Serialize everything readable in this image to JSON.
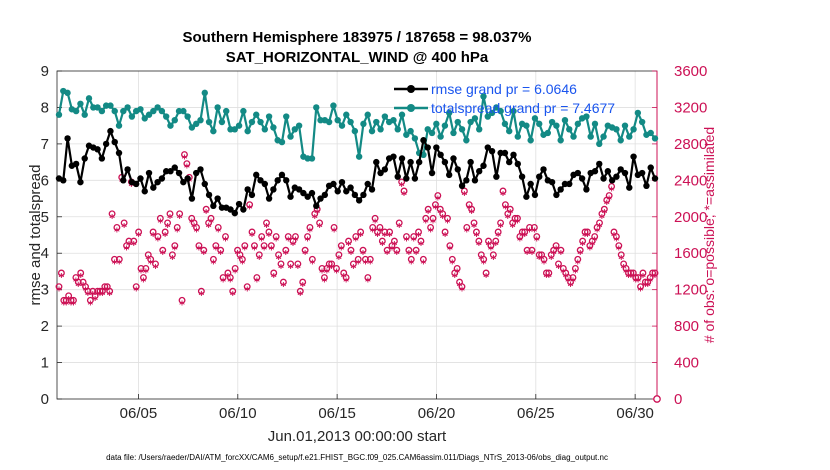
{
  "chart_data": {
    "type": "line",
    "title": "Southern Hemisphere 183975 / 187658 = 98.037%",
    "subtitle": "SAT_HORIZONTAL_WIND @ 400 hPa",
    "xlabel": "Jun.01,2013 00:00:00 start",
    "ylabel": "rmse and totalspread",
    "y2label": "# of obs: o=possible; *=assimilated",
    "footer": "data file: /Users/raeder/DAI/ATM_forcXX/CAM6_setup/f.e21.FHIST_BGC.f09_025.CAM6assim.011/Diags_NTrS_2013-06/obs_diag_output.nc",
    "xlim": [
      0.9,
      31.1
    ],
    "ylim": [
      0,
      9
    ],
    "y2lim": [
      0,
      3600
    ],
    "xtick_values": [
      5,
      10,
      15,
      20,
      25,
      30
    ],
    "xtick_labels": [
      "06/05",
      "06/10",
      "06/15",
      "06/20",
      "06/25",
      "06/30"
    ],
    "ytick_labels": [
      "0",
      "1",
      "2",
      "3",
      "4",
      "5",
      "6",
      "7",
      "8",
      "9"
    ],
    "y2tick_labels": [
      "0",
      "400",
      "800",
      "1200",
      "1600",
      "2000",
      "2400",
      "2800",
      "3200",
      "3600"
    ],
    "legend_position": "top-right",
    "colors": {
      "rmse": "#000000",
      "spread": "#138a85",
      "obs": "#cc1155",
      "legend_text": "#1a55ee"
    },
    "series": [
      {
        "name": "rmse grand pr = 6.0646",
        "values": [
          6.05,
          6.0,
          7.15,
          6.4,
          6.45,
          5.95,
          6.6,
          6.95,
          6.9,
          6.85,
          6.6,
          7.0,
          7.35,
          7.05,
          6.75,
          6.0,
          6.3,
          5.95,
          5.9,
          6.05,
          5.7,
          6.2,
          5.8,
          5.95,
          6.05,
          6.25,
          6.25,
          6.35,
          6.2,
          5.95,
          6.05,
          5.5,
          6.2,
          6.3,
          5.9,
          5.6,
          5.3,
          5.5,
          5.25,
          5.25,
          5.2,
          5.1,
          5.35,
          5.2,
          5.75,
          5.6,
          6.15,
          6.0,
          5.9,
          5.5,
          5.75,
          6.0,
          6.15,
          6.0,
          5.55,
          5.8,
          5.75,
          5.65,
          5.55,
          5.65,
          5.3,
          5.5,
          5.6,
          5.85,
          5.9,
          5.7,
          5.95,
          5.7,
          5.8,
          5.6,
          5.45,
          5.6,
          5.9,
          5.75,
          6.5,
          6.2,
          6.3,
          6.6,
          6.65,
          6.1,
          6.6,
          6.05,
          6.5,
          6.05,
          6.5,
          7.1,
          6.9,
          6.2,
          6.9,
          6.7,
          6.5,
          6.15,
          6.6,
          6.3,
          5.85,
          6.0,
          6.5,
          6.0,
          6.25,
          6.4,
          6.9,
          6.8,
          6.1,
          6.75,
          6.75,
          6.5,
          6.7,
          6.45,
          6.1,
          5.55,
          5.9,
          5.6,
          6.1,
          6.3,
          6.0,
          5.95,
          5.6,
          5.75,
          5.9,
          5.9,
          6.15,
          6.2,
          6.05,
          5.75,
          6.2,
          6.25,
          6.45,
          6.05,
          6.25,
          6.0,
          6.1,
          6.3,
          6.2,
          5.8,
          6.65,
          6.15,
          6.2,
          5.85,
          6.35,
          6.05
        ]
      },
      {
        "name": "totalspread grand pr = 7.4677",
        "values": [
          7.8,
          8.45,
          8.4,
          7.95,
          7.9,
          8.1,
          7.8,
          8.25,
          8.0,
          8.0,
          7.9,
          8.05,
          8.05,
          7.9,
          7.5,
          7.9,
          8.0,
          7.75,
          7.9,
          7.95,
          7.7,
          7.8,
          7.9,
          8.0,
          7.9,
          7.75,
          7.5,
          7.65,
          7.9,
          7.9,
          7.75,
          7.45,
          7.55,
          7.65,
          8.4,
          7.6,
          7.35,
          8.0,
          7.6,
          7.9,
          7.4,
          7.4,
          7.5,
          7.9,
          7.35,
          7.6,
          7.8,
          7.6,
          7.4,
          7.75,
          7.45,
          7.1,
          7.05,
          7.75,
          7.2,
          7.4,
          7.5,
          6.65,
          6.6,
          6.6,
          8.0,
          7.65,
          7.65,
          7.6,
          8.05,
          7.65,
          7.5,
          7.8,
          7.6,
          7.35,
          6.65,
          7.55,
          7.8,
          7.35,
          7.6,
          7.4,
          7.75,
          7.6,
          7.65,
          7.4,
          7.8,
          7.25,
          7.35,
          7.15,
          6.75,
          6.7,
          7.4,
          7.3,
          7.55,
          7.2,
          7.5,
          7.85,
          7.3,
          7.6,
          7.4,
          7.1,
          7.6,
          7.7,
          7.4,
          8.3,
          7.75,
          7.85,
          8.0,
          7.9,
          7.55,
          7.35,
          7.9,
          7.2,
          7.55,
          7.5,
          7.1,
          7.7,
          7.55,
          7.25,
          7.3,
          7.6,
          7.5,
          7.1,
          7.65,
          7.4,
          7.2,
          7.55,
          7.7,
          7.75,
          7.2,
          7.55,
          7.0,
          7.2,
          7.5,
          7.45,
          7.4,
          7.1,
          7.5,
          7.2,
          7.4,
          7.85,
          7.6,
          7.25,
          7.3,
          7.15
        ]
      },
      {
        "name": "observations possible",
        "axis": "right",
        "values": [
          1200,
          1350,
          1050,
          1050,
          1100,
          1050,
          1050,
          1300,
          1250,
          1350,
          1250,
          1200,
          1150,
          1050,
          1150,
          1100,
          1150,
          1150,
          1150,
          1200,
          1200,
          1150,
          2000,
          1500,
          1850,
          1500,
          2400,
          1900,
          1650,
          1700,
          2350,
          1700,
          1200,
          1800,
          1400,
          1300,
          1400,
          1550,
          1500,
          1800,
          1450,
          1750,
          1950,
          1600,
          1800,
          1900,
          2000,
          1550,
          1650,
          1850,
          2000,
          1050,
          2650,
          2550,
          2400,
          1950,
          1900,
          1850,
          1650,
          1150,
          1600,
          2050,
          1900,
          1950,
          1500,
          1650,
          1850,
          1600,
          1300,
          1750,
          1350,
          1300,
          1150,
          1400,
          1600,
          1550,
          1500,
          1650,
          1200,
          2100,
          1800,
          1650,
          1300,
          1550,
          1750,
          1650,
          1900,
          1800,
          1650,
          1350,
          1750,
          1550,
          1450,
          1250,
          1600,
          1750,
          1450,
          1700,
          1750,
          1450,
          1150,
          1250,
          1600,
          1750,
          1850,
          1500,
          2000,
          2050,
          1900,
          1400,
          1300,
          1400,
          1450,
          1450,
          1850,
          1400,
          1550,
          1650,
          1350,
          1300,
          1700,
          1600,
          1450,
          1750,
          1500,
          1800,
          1600,
          1500,
          1300,
          1500,
          1850,
          1950,
          1800,
          1850,
          1700,
          1800,
          1600,
          1800,
          1650,
          1700,
          1600,
          1900,
          2350,
          2250,
          1750,
          1600,
          1500,
          1750,
          1600,
          1800,
          1700,
          1500,
          1950,
          2050,
          1850,
          1950,
          2100,
          2200,
          2050,
          2000,
          1800,
          1950,
          1650,
          1500,
          1350,
          1400,
          1250,
          1200,
          2250,
          1850,
          2100,
          2050,
          1900,
          1800,
          1700,
          1550,
          1500,
          1350,
          1700,
          1650,
          1550,
          1700,
          1800,
          1900,
          2250,
          2100,
          2000,
          2050,
          1900,
          1950,
          1950,
          1750,
          1800,
          1800,
          1600,
          1850,
          1600,
          1850,
          1750,
          1550,
          1550,
          1500,
          1350,
          1350,
          1550,
          1600,
          1650,
          1450,
          1600,
          1400,
          1350,
          1300,
          1250,
          1300,
          1400,
          1500,
          1600,
          1700,
          1800,
          1800,
          1650,
          1700,
          1750,
          1850,
          1900,
          2000,
          2050,
          2150,
          2200,
          2300,
          1800,
          1750,
          1650,
          1550,
          1450,
          1400,
          1350,
          1350,
          1350,
          1300,
          1300,
          1200,
          1350,
          1250,
          1250,
          1300,
          1350,
          1350
        ]
      }
    ]
  }
}
